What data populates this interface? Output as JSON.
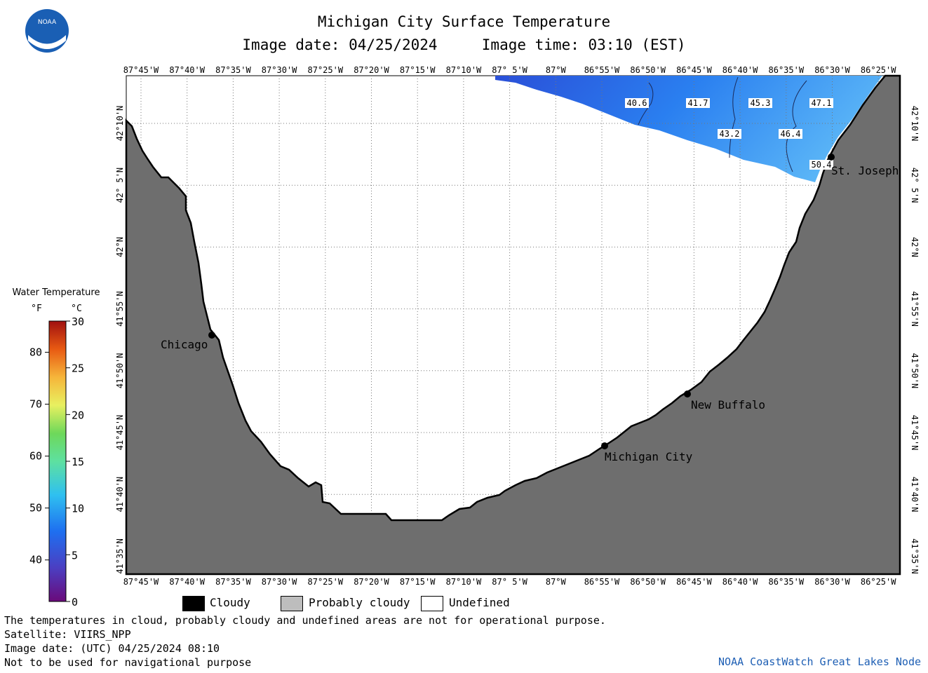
{
  "header": {
    "title": "Michigan City Surface Temperature",
    "image_date": "Image date: 04/25/2024",
    "image_time": "Image time: 03:10 (EST)"
  },
  "logo": {
    "text": "NOAA",
    "color": "#1a5fb4"
  },
  "lon_labels": [
    "87°45'W",
    "87°40'W",
    "87°35'W",
    "87°30'W",
    "87°25'W",
    "87°20'W",
    "87°15'W",
    "87°10'W",
    "87° 5'W",
    "87°W",
    "86°55'W",
    "86°50'W",
    "86°45'W",
    "86°40'W",
    "86°35'W",
    "86°30'W",
    "86°25'W"
  ],
  "lat_labels": [
    "42°10'N",
    "42° 5'N",
    "42°N",
    "41°55'N",
    "41°50'N",
    "41°45'N",
    "41°40'N",
    "41°35'N"
  ],
  "cities": [
    {
      "name": "Chicago"
    },
    {
      "name": "Michigan City"
    },
    {
      "name": "New Buffalo"
    },
    {
      "name": "St. Joseph"
    }
  ],
  "temperature_labels": [
    "40.6",
    "41.7",
    "45.3",
    "47.1",
    "43.2",
    "46.4",
    "50.4"
  ],
  "colorbar": {
    "title": "Water Temperature",
    "unit_f": "°F",
    "unit_c": "°C",
    "f_ticks": [
      "80",
      "70",
      "60",
      "50",
      "40"
    ],
    "c_ticks": [
      "30",
      "25",
      "20",
      "15",
      "10",
      "5",
      "0"
    ]
  },
  "legend": {
    "cloudy": "Cloudy",
    "probably_cloudy": "Probably cloudy",
    "undefined": "Undefined"
  },
  "colors": {
    "land": "#6e6e6e",
    "water_cold": "#2a55dd",
    "water_warm": "#4aa8f5",
    "cloudy": "#000000",
    "probably_cloudy": "#bdbdbd",
    "undefined": "#ffffff"
  },
  "footer": {
    "line1": "The temperatures in cloud, probably cloudy and undefined areas are not for operational purpose.",
    "line2": "Satellite: VIIRS_NPP",
    "line3": "Image date: (UTC) 04/25/2024  08:10",
    "line4": "Not to be used for navigational purpose",
    "credit": "NOAA CoastWatch Great Lakes Node"
  }
}
